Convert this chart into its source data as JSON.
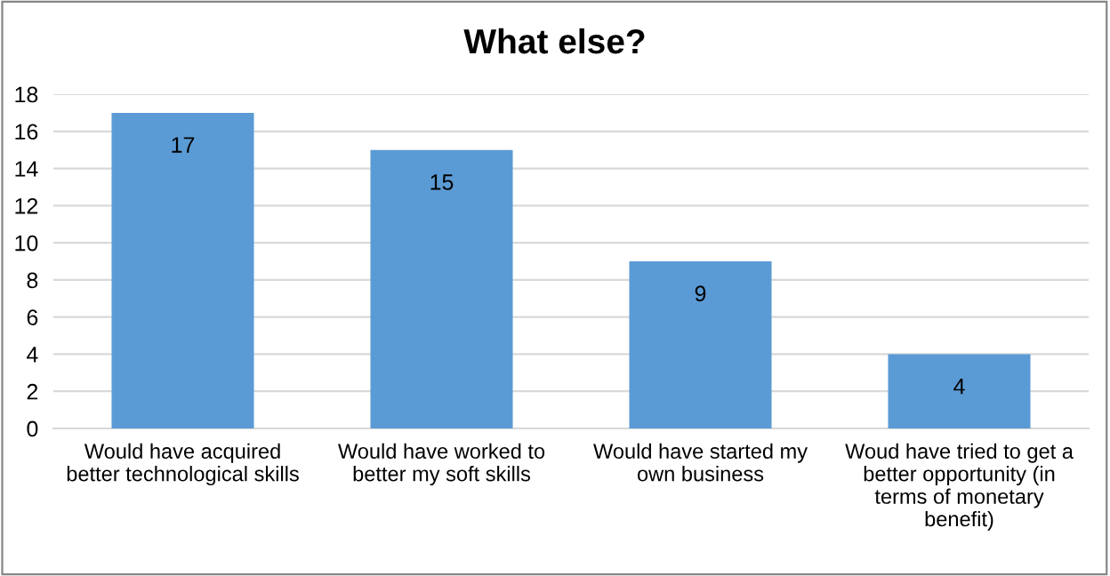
{
  "chart_data": {
    "type": "bar",
    "title": "What else?",
    "categories": [
      "Would have acquired\nbetter technological skills",
      "Would have worked to\nbetter my soft skills",
      "Would have started my\nown business",
      "Woud have tried to get a\nbetter opportunity (in\nterms of monetary\nbenefit)"
    ],
    "values": [
      17,
      15,
      9,
      4
    ],
    "color": "#5b9bd5",
    "ylim": [
      0,
      18
    ],
    "yticks": [
      0,
      2,
      4,
      6,
      8,
      10,
      12,
      14,
      16,
      18
    ],
    "grid": "y",
    "data_labels": true
  }
}
